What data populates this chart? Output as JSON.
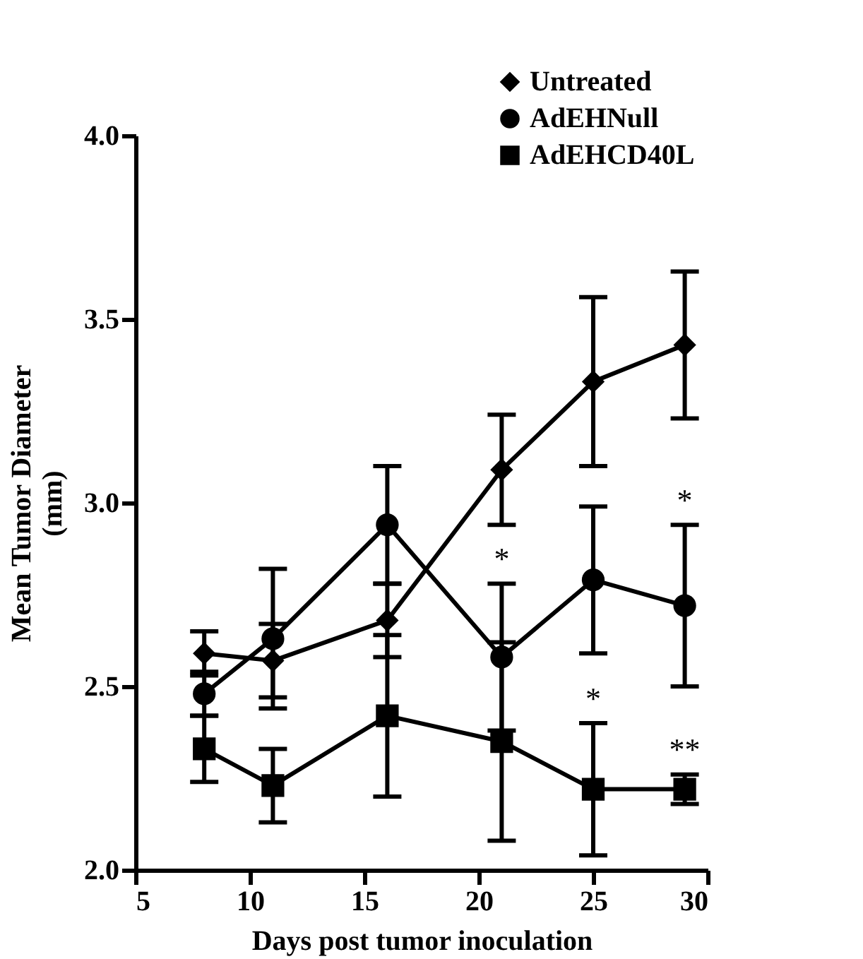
{
  "chart_data": {
    "type": "line",
    "xlabel": "Days post tumor inoculation",
    "ylabel": "Mean Tumor Diameter (mm)",
    "x": [
      8,
      11,
      16,
      21,
      25,
      29
    ],
    "series": [
      {
        "name": "Untreated",
        "color": "#000000",
        "marker": "diamond",
        "values": [
          2.59,
          2.57,
          2.68,
          3.09,
          3.33,
          3.43
        ],
        "errors": [
          0.06,
          0.1,
          0.1,
          0.15,
          0.23,
          0.2
        ]
      },
      {
        "name": "AdEHNull",
        "color": "#000000",
        "marker": "circle",
        "values": [
          2.48,
          2.63,
          2.94,
          2.58,
          2.79,
          2.72
        ],
        "errors": [
          0.06,
          0.19,
          0.16,
          0.2,
          0.2,
          0.22
        ]
      },
      {
        "name": "AdEHCD40L",
        "color": "#000000",
        "marker": "square",
        "values": [
          2.33,
          2.23,
          2.42,
          2.35,
          2.22,
          2.22
        ],
        "errors": [
          0.09,
          0.1,
          0.22,
          0.27,
          0.18,
          0.04
        ]
      }
    ],
    "xlim": [
      5,
      30
    ],
    "xticks": [
      5,
      10,
      15,
      20,
      25,
      30
    ],
    "ylim": [
      2.0,
      4.0
    ],
    "yticks": [
      {
        "value": 2.0,
        "label": "2.0"
      },
      {
        "value": 2.5,
        "label": "2.5"
      },
      {
        "value": 3.0,
        "label": "3.0"
      },
      {
        "value": 3.5,
        "label": "3.5"
      },
      {
        "value": 4.0,
        "label": "4.0"
      }
    ],
    "annotations": [
      {
        "text": "*",
        "x": 21,
        "y": 2.8
      },
      {
        "text": "*",
        "x": 29,
        "y": 2.96
      },
      {
        "text": "*",
        "x": 25,
        "y": 2.42
      },
      {
        "text": "**",
        "x": 29,
        "y": 2.28
      }
    ],
    "legend": "top right",
    "grid": false,
    "line_style": "solid"
  }
}
